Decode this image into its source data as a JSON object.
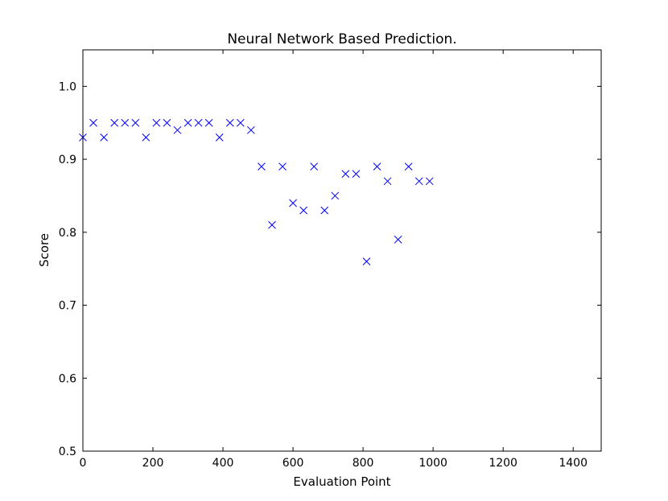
{
  "chart_data": {
    "type": "scatter",
    "title": "Neural Network Based Prediction.",
    "xlabel": "Evaluation Point",
    "ylabel": "Score",
    "xlim": [
      0,
      1480
    ],
    "ylim": [
      0.5,
      1.05
    ],
    "xticks": [
      0,
      200,
      400,
      600,
      800,
      1000,
      1200,
      1400
    ],
    "yticks": [
      0.5,
      0.6,
      0.7,
      0.8,
      0.9,
      1.0
    ],
    "xtick_labels": [
      "0",
      "200",
      "400",
      "600",
      "800",
      "1000",
      "1200",
      "1400"
    ],
    "ytick_labels": [
      "0.5",
      "0.6",
      "0.7",
      "0.8",
      "0.9",
      "1.0"
    ],
    "marker": "x",
    "marker_color": "#0000ff",
    "grid": false,
    "series": [
      {
        "x": [
          0,
          30,
          60,
          90,
          120,
          150,
          180,
          210,
          240,
          270,
          300,
          330,
          360,
          390,
          420,
          450,
          480,
          510,
          540,
          570,
          600,
          630,
          660,
          690,
          720,
          750,
          780,
          810,
          840,
          870,
          900,
          930,
          960,
          990
        ],
        "y": [
          0.93,
          0.95,
          0.93,
          0.95,
          0.95,
          0.95,
          0.93,
          0.95,
          0.95,
          0.94,
          0.95,
          0.95,
          0.95,
          0.93,
          0.95,
          0.95,
          0.94,
          0.89,
          0.81,
          0.89,
          0.84,
          0.83,
          0.89,
          0.83,
          0.85,
          0.88,
          0.88,
          0.76,
          0.89,
          0.87,
          0.79,
          0.89,
          0.87,
          0.87
        ]
      }
    ]
  }
}
